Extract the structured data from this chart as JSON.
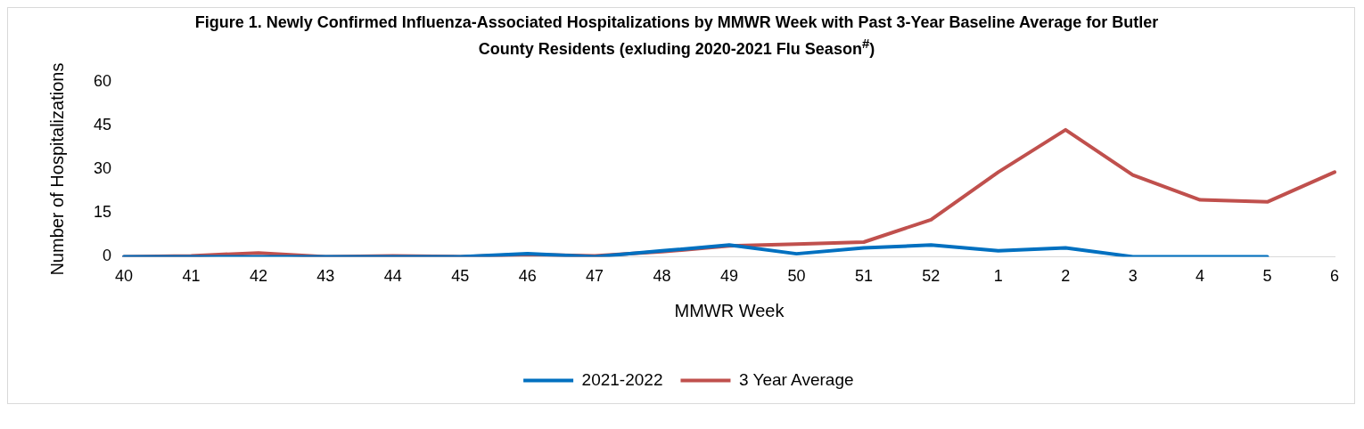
{
  "chart_data": {
    "type": "line",
    "title": "Figure 1.  Newly Confirmed Influenza-Associated Hospitalizations by MMWR Week with Past 3-Year Baseline Average for Butler County Residents (exluding 2020-2021 Flu Season$^{#}$)",
    "xlabel": "MMWR Week",
    "ylabel": "Number of Hospitalizations",
    "categories": [
      "40",
      "41",
      "42",
      "43",
      "44",
      "45",
      "46",
      "47",
      "48",
      "49",
      "50",
      "51",
      "52",
      "1",
      "2",
      "3",
      "4",
      "5",
      "6"
    ],
    "series": [
      {
        "name": "2021-2022",
        "color": "#0070c0",
        "values": [
          0,
          0,
          0,
          0,
          0,
          0,
          1,
          0,
          2,
          4,
          1,
          3,
          4,
          2,
          3,
          0,
          0,
          0,
          null
        ]
      },
      {
        "name": "3 Year Average",
        "color": "#c0504d",
        "values": [
          0,
          0.3,
          1.3,
          0,
          0.3,
          0,
          0.7,
          0.3,
          1.7,
          3.7,
          4.3,
          5,
          12.7,
          29,
          43.5,
          28,
          19.5,
          18.8,
          29
        ]
      }
    ],
    "ylim": [
      0,
      60
    ],
    "yticks": [
      0,
      15,
      30,
      45,
      60
    ],
    "grid": false,
    "legend": "bottom",
    "marker": "none",
    "line_style": "solid"
  }
}
